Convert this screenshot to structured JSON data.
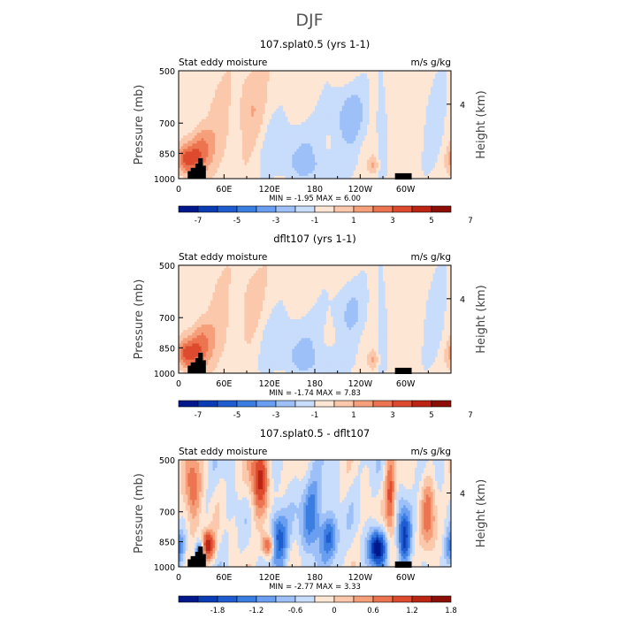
{
  "figure": {
    "title": "DJF"
  },
  "colors": {
    "neg": [
      "#00188c",
      "#0a3cb4",
      "#1f5ccf",
      "#3b7ee2",
      "#6a9ef0",
      "#9cc0f7",
      "#c8dcfb"
    ],
    "pos": [
      "#fde6d4",
      "#fbc8ac",
      "#f5a07a",
      "#ec7450",
      "#de4a2e",
      "#bc2414",
      "#8c0e05"
    ],
    "terrain": "#000000"
  },
  "chart_data": [
    {
      "type": "heatmap",
      "title": "107.splat0.5 (yrs 1-1)",
      "left_label": "Stat eddy moisture",
      "right_label": "m/s g/kg",
      "ylabel": "Pressure (mb)",
      "right_axis_label": "Height (km)",
      "yticks": [
        500,
        700,
        850,
        1000
      ],
      "right_ticks": [
        4
      ],
      "xticks": [
        "0",
        "60E",
        "120E",
        "180",
        "120W",
        "60W"
      ],
      "xlim": [
        0,
        360
      ],
      "stats": {
        "min_label": "MIN =",
        "min": "-1.95",
        "max_label": "MAX =",
        "max": "6.00"
      },
      "colorbar_labels": [
        "-7",
        "-5",
        "-3",
        "-1",
        "1",
        "3",
        "5",
        "7"
      ],
      "pattern": "control"
    },
    {
      "type": "heatmap",
      "title": "dflt107 (yrs 1-1)",
      "left_label": "Stat eddy moisture",
      "right_label": "m/s g/kg",
      "ylabel": "Pressure (mb)",
      "right_axis_label": "Height (km)",
      "yticks": [
        500,
        700,
        850,
        1000
      ],
      "right_ticks": [
        4
      ],
      "xticks": [
        "0",
        "60E",
        "120E",
        "180",
        "120W",
        "60W"
      ],
      "xlim": [
        0,
        360
      ],
      "stats": {
        "min_label": "MIN =",
        "min": "-1.74",
        "max_label": "MAX =",
        "max": "7.83"
      },
      "colorbar_labels": [
        "-7",
        "-5",
        "-3",
        "-1",
        "1",
        "3",
        "5",
        "7"
      ],
      "pattern": "default"
    },
    {
      "type": "heatmap",
      "title": "107.splat0.5 - dflt107",
      "left_label": "Stat eddy moisture",
      "right_label": "m/s g/kg",
      "ylabel": "Pressure (mb)",
      "right_axis_label": "Height (km)",
      "yticks": [
        500,
        700,
        850,
        1000
      ],
      "right_ticks": [
        4
      ],
      "xticks": [
        "0",
        "60E",
        "120E",
        "180",
        "120W",
        "60W"
      ],
      "xlim": [
        0,
        360
      ],
      "stats": {
        "min_label": "MIN =",
        "min": "-2.77",
        "max_label": "MAX =",
        "max": "3.33"
      },
      "colorbar_labels": [
        "-1.8",
        "-1.2",
        "-0.6",
        "0",
        "0.6",
        "1.2",
        "1.8"
      ],
      "pattern": "difference"
    }
  ]
}
